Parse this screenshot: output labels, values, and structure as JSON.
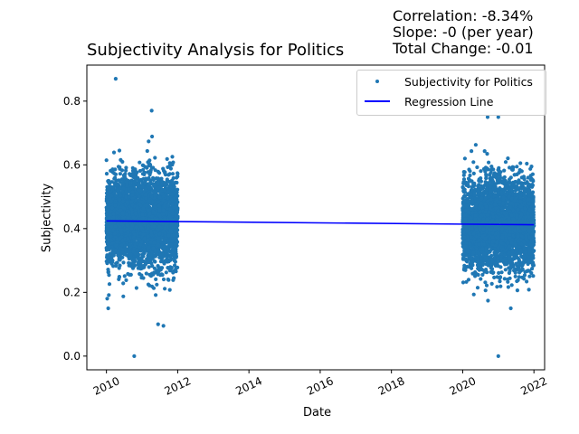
{
  "stats": {
    "correlation": "Correlation: -8.34%",
    "slope": "Slope: -0 (per year)",
    "total_change": "Total Change: -0.01"
  },
  "chart_data": {
    "type": "scatter",
    "title": "Subjectivity Analysis for Politics",
    "xlabel": "Date",
    "ylabel": "Subjectivity",
    "xlim": [
      2009.45,
      2022.3
    ],
    "ylim": [
      -0.043,
      0.913
    ],
    "x_ticks": [
      "2010",
      "2012",
      "2014",
      "2016",
      "2018",
      "2020",
      "2022"
    ],
    "y_ticks": [
      "0.0",
      "0.2",
      "0.4",
      "0.6",
      "0.8"
    ],
    "grid": false,
    "legend": {
      "placement": "upper-right",
      "entries": [
        "Subjectivity for Politics",
        "Regression Line"
      ]
    },
    "series": [
      {
        "name": "Subjectivity for Politics",
        "kind": "scatter",
        "color": "#1f77b4",
        "clusters": [
          {
            "x_range": [
              2010.0,
              2012.0
            ],
            "y_center": 0.424,
            "y_spread": 0.07
          },
          {
            "x_range": [
              2020.0,
              2022.0
            ],
            "y_center": 0.412,
            "y_spread": 0.07
          }
        ],
        "outliers": [
          {
            "x": 2010.26,
            "y": 0.87
          },
          {
            "x": 2011.27,
            "y": 0.77
          },
          {
            "x": 2010.78,
            "y": 0.0
          },
          {
            "x": 2021.0,
            "y": 0.0
          },
          {
            "x": 2020.7,
            "y": 0.75
          },
          {
            "x": 2021.0,
            "y": 0.75
          },
          {
            "x": 2011.6,
            "y": 0.095
          },
          {
            "x": 2010.05,
            "y": 0.15
          },
          {
            "x": 2011.45,
            "y": 0.1
          },
          {
            "x": 2021.35,
            "y": 0.15
          }
        ]
      },
      {
        "name": "Regression Line",
        "kind": "line",
        "color": "#0000ff",
        "x": [
          2010.0,
          2022.0
        ],
        "y": [
          0.424,
          0.412
        ]
      }
    ]
  }
}
